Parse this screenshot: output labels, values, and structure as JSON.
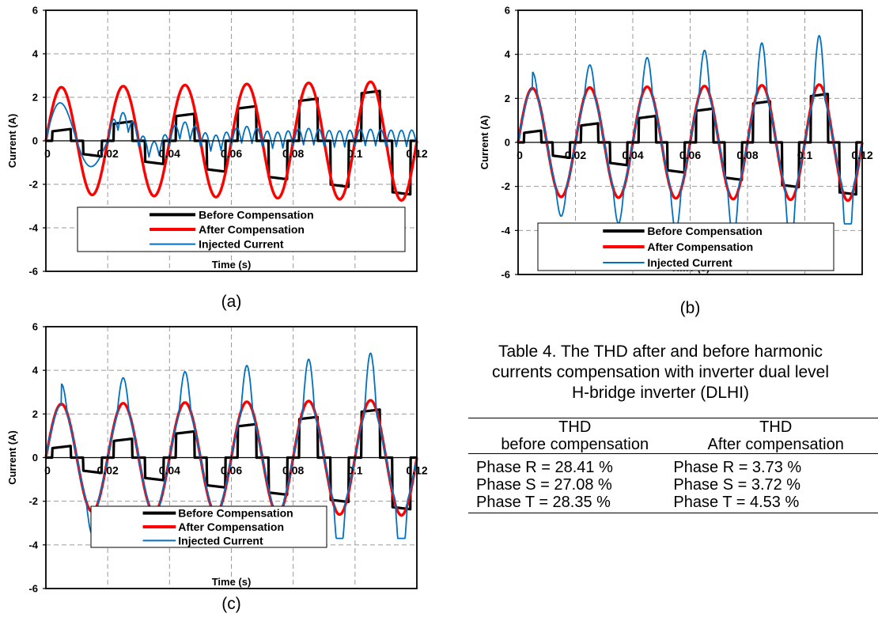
{
  "chart_data": [
    {
      "panel_label": "(a)",
      "type": "line",
      "ylabel": "Current (A)",
      "xlabel": "Time (s)",
      "xlim": [
        0,
        0.12
      ],
      "ylim": [
        -6,
        6
      ],
      "xticks": [
        "0",
        "0.02",
        "0.04",
        "0.06",
        "0.08",
        "0.1",
        "0.12"
      ],
      "yticks": [
        "-6",
        "-4",
        "-2",
        "0",
        "2",
        "4",
        "6"
      ],
      "grid": true,
      "legend_position": "bottom",
      "series": [
        {
          "name": "Before Compensation",
          "color": "#000000",
          "kind": "stepped",
          "amplitude_start": 0.4,
          "amplitude_end": 2.5
        },
        {
          "name": "After Compensation",
          "color": "#ff0000",
          "kind": "sine",
          "amplitude_start": 2.45,
          "amplitude_end": 2.75
        },
        {
          "name": "Injected Current",
          "color": "#0070c0",
          "kind": "ripple",
          "amplitude_start": 2.1,
          "amplitude_end": 0.8
        }
      ]
    },
    {
      "panel_label": "(b)",
      "type": "line",
      "ylabel": "Current (A)",
      "xlabel": "Time (s)",
      "xlim": [
        0,
        0.12
      ],
      "ylim": [
        -6,
        6
      ],
      "xticks": [
        "0",
        "0.02",
        "0.04",
        "0.06",
        "0.08",
        "0.1",
        "0.12"
      ],
      "yticks": [
        "-6",
        "-4",
        "-2",
        "0",
        "2",
        "4",
        "6"
      ],
      "grid": true,
      "legend_position": "bottom",
      "series": [
        {
          "name": "Before Compensation",
          "color": "#000000",
          "kind": "stepped",
          "amplitude_start": 0.4,
          "amplitude_end": 2.4
        },
        {
          "name": "After Compensation",
          "color": "#ff0000",
          "kind": "sine",
          "amplitude_start": 2.45,
          "amplitude_end": 2.65
        },
        {
          "name": "Injected Current",
          "color": "#0070c0",
          "kind": "spiky",
          "amplitude_start": 3.1,
          "amplitude_end": 5.1
        }
      ]
    },
    {
      "panel_label": "(c)",
      "type": "line",
      "ylabel": "Current (A)",
      "xlabel": "Time (s)",
      "xlim": [
        0,
        0.12
      ],
      "ylim": [
        -6,
        6
      ],
      "xticks": [
        "0",
        "0.02",
        "0.04",
        "0.06",
        "0.08",
        "0.1",
        "0.12"
      ],
      "yticks": [
        "-6",
        "-4",
        "-2",
        "0",
        "2",
        "4",
        "6"
      ],
      "grid": true,
      "legend_position": "bottom",
      "series": [
        {
          "name": "Before Compensation",
          "color": "#000000",
          "kind": "stepped",
          "amplitude_start": 0.4,
          "amplitude_end": 2.4
        },
        {
          "name": "After Compensation",
          "color": "#ff0000",
          "kind": "sine",
          "amplitude_start": 2.45,
          "amplitude_end": 2.65
        },
        {
          "name": "Injected Current",
          "color": "#0070c0",
          "kind": "spiky",
          "amplitude_start": 3.3,
          "amplitude_end": 5.0
        }
      ]
    }
  ],
  "table": {
    "caption": "Table 4. The THD after and before harmonic\ncurrents compensation with inverter dual level\nH-bridge inverter (DLHI)",
    "header_top": [
      "THD",
      "THD"
    ],
    "header_bottom": [
      "before compensation",
      "After compensation"
    ],
    "rows": [
      [
        "Phase R = 28.41 %",
        "Phase R = 3.73 %"
      ],
      [
        "Phase S = 27.08 %",
        "Phase S = 3.72 %"
      ],
      [
        "Phase T = 28.35 %",
        "Phase T = 4.53 %"
      ]
    ]
  }
}
